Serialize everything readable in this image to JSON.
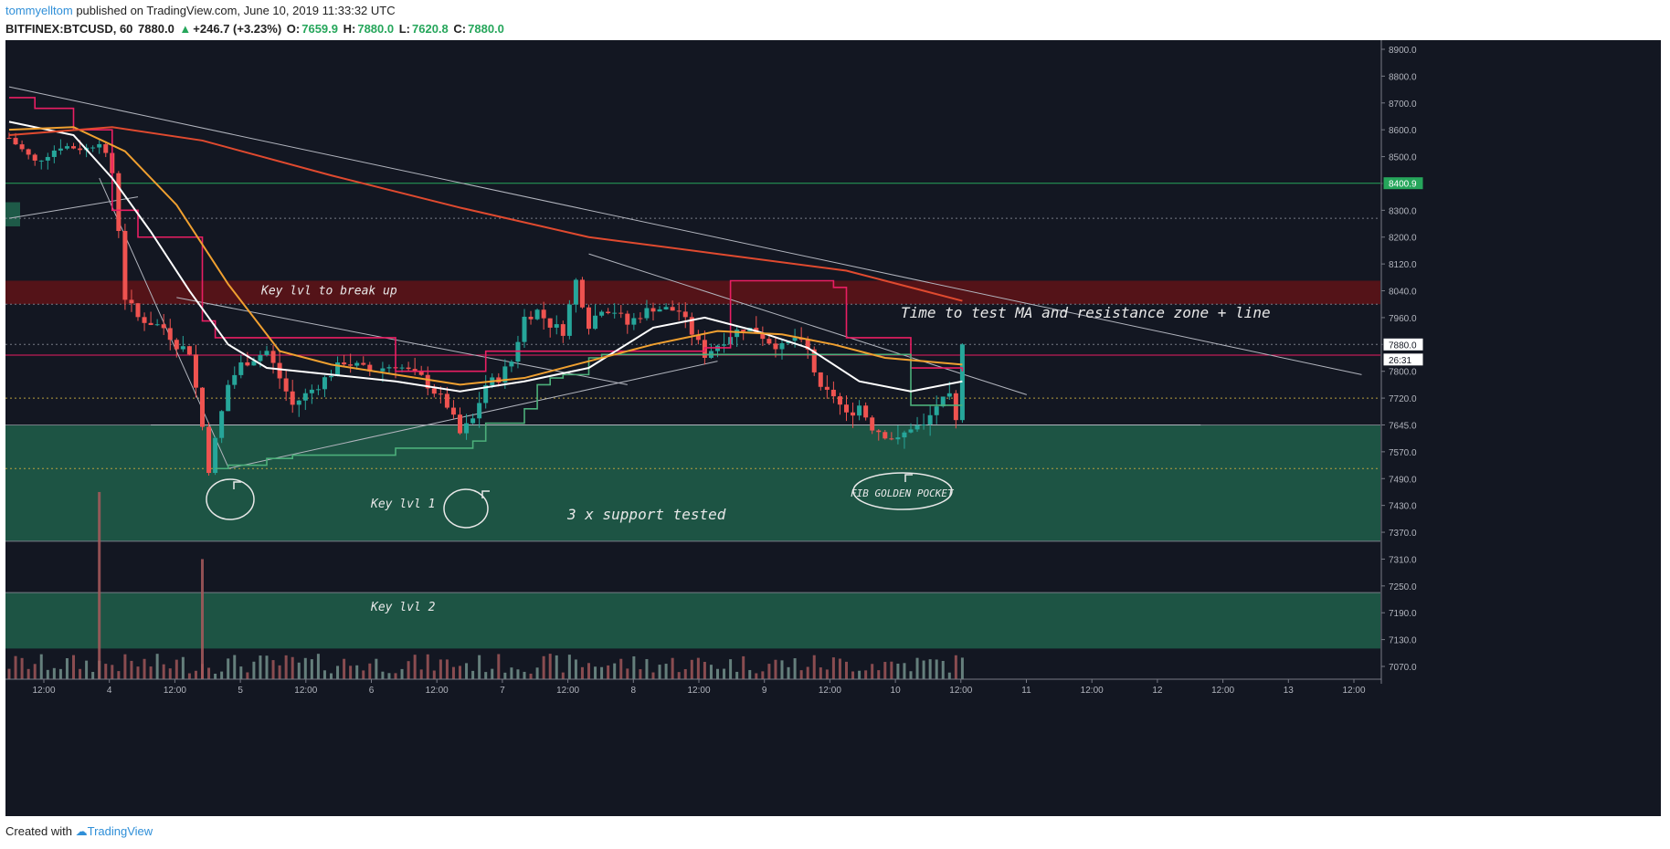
{
  "header": {
    "author": "tommyelltom",
    "published": "published on TradingView.com, June 10, 2019 11:33:32 UTC",
    "symbol": "BITFINEX:BTCUSD, 60",
    "last": "7880.0",
    "change": "+246.7 (+3.23%)",
    "o_label": "O:",
    "o_value": "7659.9",
    "h_label": "H:",
    "h_value": "7880.0",
    "l_label": "L:",
    "l_value": "7620.8",
    "c_label": "C:",
    "c_value": "7880.0"
  },
  "footer": {
    "created_with": "Created with",
    "brand": "TradingView"
  },
  "chart_data": {
    "type": "candlestick",
    "symbol": "BITFINEX:BTCUSD",
    "interval": "60",
    "y_axis": {
      "ticks": [
        8900,
        8800,
        8700,
        8600,
        8500,
        8400,
        8300,
        8200,
        8120,
        8040,
        7960,
        7880,
        7800,
        7720,
        7645,
        7570,
        7490,
        7430,
        7370,
        7310,
        7250,
        7190,
        7130,
        7070
      ],
      "tick_labels": [
        "8900.0",
        "8800.0",
        "8700.0",
        "8600.0",
        "8500.0",
        "8400.0",
        "8300.0",
        "8200.0",
        "8120.0",
        "8040.0",
        "7960.0",
        "7880.0",
        "7800.0",
        "7720.0",
        "7645.0",
        "7570.0",
        "7490.0",
        "7430.0",
        "7370.0",
        "7310.0",
        "7250.0",
        "7190.0",
        "7130.0",
        "7070.0"
      ],
      "price_labels": [
        {
          "text": "8400.9",
          "value": 8400.9,
          "color": "#26a65b"
        },
        {
          "text": "7880.0",
          "value": 7880.0,
          "color": "#ffffff"
        },
        {
          "text": "26:31",
          "value": 7835,
          "color": "#ffffff"
        }
      ]
    },
    "x_axis": {
      "ticks": [
        "12:00",
        "4",
        "12:00",
        "5",
        "12:00",
        "6",
        "12:00",
        "7",
        "12:00",
        "8",
        "12:00",
        "9",
        "12:00",
        "10",
        "12:00",
        "11",
        "12:00",
        "12",
        "12:00",
        "13",
        "12:00"
      ]
    },
    "price_path": [
      [
        0,
        8570
      ],
      [
        4,
        8480
      ],
      [
        8,
        8540
      ],
      [
        12,
        8530
      ],
      [
        14,
        8560
      ],
      [
        16,
        8440
      ],
      [
        18,
        8020
      ],
      [
        20,
        7960
      ],
      [
        24,
        7930
      ],
      [
        26,
        7880
      ],
      [
        28,
        7860
      ],
      [
        30,
        7640
      ],
      [
        31,
        7520
      ],
      [
        32,
        7600
      ],
      [
        34,
        7760
      ],
      [
        36,
        7820
      ],
      [
        40,
        7860
      ],
      [
        44,
        7700
      ],
      [
        48,
        7760
      ],
      [
        52,
        7830
      ],
      [
        56,
        7800
      ],
      [
        60,
        7820
      ],
      [
        64,
        7780
      ],
      [
        66,
        7740
      ],
      [
        68,
        7700
      ],
      [
        70,
        7620
      ],
      [
        72,
        7660
      ],
      [
        74,
        7760
      ],
      [
        76,
        7780
      ],
      [
        78,
        7830
      ],
      [
        80,
        7960
      ],
      [
        82,
        7980
      ],
      [
        84,
        7940
      ],
      [
        86,
        7920
      ],
      [
        88,
        8070
      ],
      [
        90,
        7940
      ],
      [
        92,
        7990
      ],
      [
        94,
        7980
      ],
      [
        96,
        7940
      ],
      [
        98,
        7970
      ],
      [
        100,
        7990
      ],
      [
        104,
        7980
      ],
      [
        108,
        7850
      ],
      [
        110,
        7880
      ],
      [
        112,
        7910
      ],
      [
        114,
        7930
      ],
      [
        116,
        7920
      ],
      [
        118,
        7890
      ],
      [
        120,
        7870
      ],
      [
        122,
        7900
      ],
      [
        124,
        7860
      ],
      [
        126,
        7740
      ],
      [
        128,
        7730
      ],
      [
        130,
        7670
      ],
      [
        132,
        7700
      ],
      [
        134,
        7640
      ],
      [
        136,
        7620
      ],
      [
        138,
        7600
      ],
      [
        140,
        7640
      ],
      [
        142,
        7640
      ],
      [
        144,
        7700
      ],
      [
        146,
        7720
      ],
      [
        147,
        7650
      ],
      [
        148,
        7880
      ]
    ],
    "volume_spikes": [
      [
        14,
        7460
      ],
      [
        30,
        7310
      ]
    ],
    "moving_averages": [
      {
        "name": "MA",
        "color": "#ffffff",
        "values": [
          [
            0,
            8630
          ],
          [
            10,
            8580
          ],
          [
            16,
            8420
          ],
          [
            22,
            8220
          ],
          [
            28,
            8040
          ],
          [
            34,
            7880
          ],
          [
            40,
            7810
          ],
          [
            50,
            7790
          ],
          [
            60,
            7770
          ],
          [
            70,
            7740
          ],
          [
            80,
            7770
          ],
          [
            90,
            7810
          ],
          [
            100,
            7930
          ],
          [
            108,
            7960
          ],
          [
            116,
            7920
          ],
          [
            124,
            7870
          ],
          [
            132,
            7770
          ],
          [
            140,
            7740
          ],
          [
            148,
            7770
          ]
        ]
      },
      {
        "name": "MA",
        "color": "#f0a030",
        "values": [
          [
            0,
            8600
          ],
          [
            10,
            8610
          ],
          [
            18,
            8520
          ],
          [
            26,
            8320
          ],
          [
            34,
            8060
          ],
          [
            42,
            7860
          ],
          [
            50,
            7820
          ],
          [
            60,
            7790
          ],
          [
            70,
            7760
          ],
          [
            80,
            7780
          ],
          [
            90,
            7830
          ],
          [
            100,
            7880
          ],
          [
            110,
            7920
          ],
          [
            120,
            7910
          ],
          [
            128,
            7880
          ],
          [
            136,
            7840
          ],
          [
            148,
            7820
          ]
        ]
      },
      {
        "name": "MA",
        "color": "#e04a2f",
        "values": [
          [
            0,
            8580
          ],
          [
            16,
            8610
          ],
          [
            30,
            8560
          ],
          [
            50,
            8430
          ],
          [
            70,
            8310
          ],
          [
            90,
            8200
          ],
          [
            110,
            8150
          ],
          [
            130,
            8100
          ],
          [
            148,
            8010
          ]
        ]
      }
    ],
    "step_lines": [
      {
        "name": "upper",
        "color": "#e91e63",
        "values": [
          [
            0,
            8720
          ],
          [
            4,
            8680
          ],
          [
            10,
            8600
          ],
          [
            16,
            8500
          ],
          [
            16,
            8300
          ],
          [
            20,
            8200
          ],
          [
            28,
            8200
          ],
          [
            30,
            7950
          ],
          [
            32,
            7900
          ],
          [
            60,
            7800
          ],
          [
            74,
            7860
          ],
          [
            108,
            7870
          ],
          [
            112,
            8070
          ],
          [
            128,
            8050
          ],
          [
            130,
            7900
          ],
          [
            140,
            7810
          ],
          [
            148,
            7800
          ]
        ]
      },
      {
        "name": "lower",
        "color": "#4caf7a",
        "values": [
          [
            32,
            7520
          ],
          [
            34,
            7530
          ],
          [
            40,
            7550
          ],
          [
            44,
            7560
          ],
          [
            60,
            7580
          ],
          [
            70,
            7580
          ],
          [
            72,
            7600
          ],
          [
            74,
            7650
          ],
          [
            80,
            7690
          ],
          [
            82,
            7760
          ],
          [
            84,
            7780
          ],
          [
            86,
            7790
          ],
          [
            90,
            7840
          ],
          [
            92,
            7850
          ],
          [
            108,
            7850
          ],
          [
            112,
            7850
          ],
          [
            140,
            7700
          ],
          [
            148,
            7700
          ]
        ]
      }
    ],
    "horizontal_levels": [
      {
        "value": 8400.9,
        "color": "#26a65b",
        "style": "solid"
      },
      {
        "value": 8270,
        "color": "#787b86",
        "style": "dotted"
      },
      {
        "value": 8000,
        "color": "#787b86",
        "style": "dotted"
      },
      {
        "value": 7880,
        "color": "#787b86",
        "style": "dotted"
      },
      {
        "value": 7848,
        "color": "#e91e63",
        "style": "solid"
      },
      {
        "value": 7720,
        "color": "#b8a040",
        "style": "dotted"
      },
      {
        "value": 7645,
        "color": "#787b86",
        "style": "solid"
      },
      {
        "value": 7520,
        "color": "#b8a040",
        "style": "dotted"
      },
      {
        "value": 7350,
        "color": "#787b86",
        "style": "solid"
      },
      {
        "value": 7235,
        "color": "#787b86",
        "style": "solid"
      }
    ],
    "zones": [
      {
        "from": 7350,
        "to": 7645,
        "color": "#1e5a48"
      },
      {
        "from": 7110,
        "to": 7235,
        "color": "#1e5a48"
      },
      {
        "from": 8000,
        "to": 8070,
        "color": "#5a1418"
      }
    ],
    "annotations": [
      {
        "text": "Key lvl to break up"
      },
      {
        "text": "Time to test MA and resistance zone + line"
      },
      {
        "text": "Key lvl 1"
      },
      {
        "text": "3 x support tested"
      },
      {
        "text": "FIB GOLDEN POCKET"
      },
      {
        "text": "Key lvl 2"
      }
    ]
  }
}
